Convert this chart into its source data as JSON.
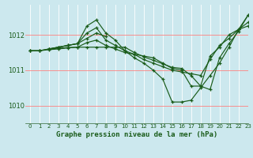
{
  "title": "Graphe pression niveau de la mer (hPa)",
  "bg_color": "#cce8ee",
  "grid_color": "#b0d8e0",
  "line_color": "#1a5c1a",
  "red_line_color": "#ff8080",
  "xlim": [
    -0.5,
    23
  ],
  "ylim": [
    1009.5,
    1012.85
  ],
  "yticks": [
    1010,
    1011,
    1012
  ],
  "xticks": [
    0,
    1,
    2,
    3,
    4,
    5,
    6,
    7,
    8,
    9,
    10,
    11,
    12,
    13,
    14,
    15,
    16,
    17,
    18,
    19,
    20,
    21,
    22,
    23
  ],
  "lines": [
    {
      "x": [
        0,
        1,
        2,
        3,
        4,
        5,
        6,
        7,
        8,
        9,
        10,
        11,
        12,
        13,
        14,
        15,
        16,
        17,
        18,
        19,
        20,
        21,
        22,
        23
      ],
      "y": [
        1011.55,
        1011.55,
        1011.6,
        1011.65,
        1011.7,
        1011.75,
        1012.05,
        1012.2,
        1011.85,
        1011.7,
        1011.55,
        1011.45,
        1011.3,
        1011.2,
        1011.1,
        1011.0,
        1010.95,
        1010.9,
        1010.85,
        1011.3,
        1011.7,
        1011.9,
        1012.15,
        1012.35
      ]
    },
    {
      "x": [
        0,
        1,
        2,
        3,
        4,
        5,
        6,
        7,
        8,
        9,
        10,
        11,
        12,
        13,
        14,
        15,
        16,
        17,
        18,
        19,
        20,
        21,
        22,
        23
      ],
      "y": [
        1011.55,
        1011.55,
        1011.6,
        1011.65,
        1011.7,
        1011.75,
        1012.25,
        1012.42,
        1012.05,
        1011.85,
        1011.55,
        1011.35,
        1011.2,
        1011.0,
        1010.75,
        1010.1,
        1010.1,
        1010.15,
        1010.5,
        1010.85,
        1011.2,
        1011.65,
        1012.15,
        1012.55
      ]
    },
    {
      "x": [
        0,
        1,
        2,
        3,
        4,
        5,
        6,
        7,
        8,
        9,
        10,
        11,
        12,
        13,
        14,
        15,
        16,
        17,
        18,
        19,
        20,
        21,
        22,
        23
      ],
      "y": [
        1011.55,
        1011.55,
        1011.58,
        1011.6,
        1011.63,
        1011.65,
        1011.78,
        1011.85,
        1011.7,
        1011.6,
        1011.5,
        1011.45,
        1011.4,
        1011.35,
        1011.2,
        1011.05,
        1011.0,
        1010.55,
        1010.55,
        1011.4,
        1011.65,
        1012.0,
        1012.15,
        1012.25
      ]
    },
    {
      "x": [
        2,
        3,
        4,
        5,
        6,
        7,
        8,
        9,
        10,
        11,
        12,
        13,
        14,
        15,
        16,
        17,
        18,
        19,
        20,
        21,
        22,
        23
      ],
      "y": [
        1011.6,
        1011.62,
        1011.64,
        1011.65,
        1011.65,
        1011.65,
        1011.65,
        1011.65,
        1011.65,
        1011.5,
        1011.38,
        1011.28,
        1011.18,
        1011.08,
        1011.05,
        1010.85,
        1010.55,
        1010.45,
        1011.35,
        1011.75,
        1012.1,
        1012.55
      ]
    },
    {
      "x": [
        2,
        3,
        4,
        5,
        6,
        7,
        8
      ],
      "y": [
        1011.6,
        1011.65,
        1011.7,
        1011.75,
        1011.9,
        1012.05,
        1011.95
      ]
    }
  ]
}
